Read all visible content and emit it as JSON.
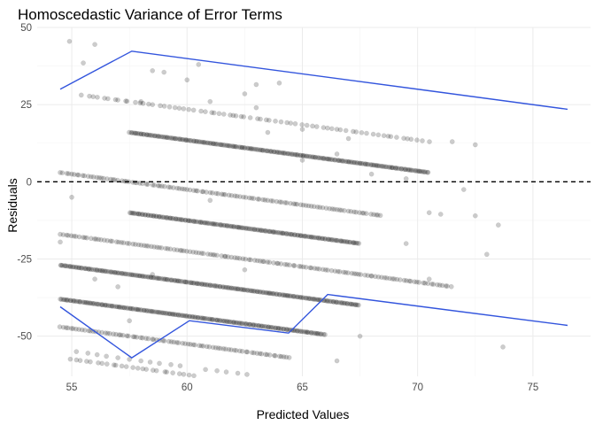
{
  "chart_data": {
    "type": "scatter",
    "title": "Homoscedastic Variance of Error Terms",
    "xlabel": "Predicted Values",
    "ylabel": "Residuals",
    "xlim": [
      53.5,
      77.5
    ],
    "ylim": [
      -63,
      50
    ],
    "x_ticks": [
      55,
      60,
      65,
      70,
      75
    ],
    "y_ticks": [
      -50,
      -25,
      0,
      25,
      50
    ],
    "x_tick_labels": [
      "55",
      "60",
      "65",
      "70",
      "75"
    ],
    "y_tick_labels": [
      "-50",
      "-25",
      "0",
      "25",
      "50"
    ],
    "grid": true,
    "reference_line": {
      "y": 0,
      "style": "dashed",
      "color": "#000000"
    },
    "point_color": "#000000",
    "point_opacity": 0.2,
    "line_color": "#3355dd",
    "bands": [
      {
        "offset": 83.5,
        "x_start": 55.5,
        "x_end": 70.5,
        "density": "sparse"
      },
      {
        "offset": 73.5,
        "x_start": 57.5,
        "x_end": 70.5,
        "density": "dense"
      },
      {
        "offset": 57.5,
        "x_start": 54.5,
        "x_end": 68.5,
        "density": "medium"
      },
      {
        "offset": 47.5,
        "x_start": 57.5,
        "x_end": 67.5,
        "density": "dense"
      },
      {
        "offset": 37.5,
        "x_start": 54.5,
        "x_end": 71.5,
        "density": "medium"
      },
      {
        "offset": 27.5,
        "x_start": 54.5,
        "x_end": 67.5,
        "density": "dense"
      },
      {
        "offset": 16.5,
        "x_start": 54.5,
        "x_end": 66.0,
        "density": "dense"
      },
      {
        "offset": 7.5,
        "x_start": 54.5,
        "x_end": 64.5,
        "density": "medium"
      },
      {
        "offset": -2.5,
        "x_start": 55.0,
        "x_end": 61.5,
        "density": "sparse"
      },
      {
        "offset": -13.5,
        "x_start": 55.0,
        "x_end": 64.5,
        "density": "sparse"
      },
      {
        "offset": -23.5,
        "x_start": 55.0,
        "x_end": 67.0,
        "density": "sparse"
      }
    ],
    "scatter_extra": [
      {
        "x": 54.9,
        "y": 45.5
      },
      {
        "x": 55.5,
        "y": 38.5
      },
      {
        "x": 56.0,
        "y": 44.5
      },
      {
        "x": 58.5,
        "y": 36.0
      },
      {
        "x": 59.0,
        "y": 35.5
      },
      {
        "x": 60.0,
        "y": 33.0
      },
      {
        "x": 62.5,
        "y": 28.5
      },
      {
        "x": 63.0,
        "y": 31.5
      },
      {
        "x": 64.0,
        "y": 32.0
      },
      {
        "x": 62.0,
        "y": 21.5
      },
      {
        "x": 63.5,
        "y": 16.0
      },
      {
        "x": 65.0,
        "y": 7.0
      },
      {
        "x": 66.5,
        "y": 9.0
      },
      {
        "x": 68.0,
        "y": 2.5
      },
      {
        "x": 69.5,
        "y": 1.0
      },
      {
        "x": 71.5,
        "y": 13.0
      },
      {
        "x": 72.5,
        "y": 12.0
      },
      {
        "x": 70.5,
        "y": -10.0
      },
      {
        "x": 71.0,
        "y": -10.5
      },
      {
        "x": 72.0,
        "y": -2.5
      },
      {
        "x": 72.5,
        "y": -11.0
      },
      {
        "x": 73.5,
        "y": -14.0
      },
      {
        "x": 69.5,
        "y": -20.0
      },
      {
        "x": 73.0,
        "y": -23.5
      },
      {
        "x": 56.0,
        "y": -31.5
      },
      {
        "x": 57.0,
        "y": -34.0
      },
      {
        "x": 58.5,
        "y": -30.0
      },
      {
        "x": 61.0,
        "y": -6.0
      },
      {
        "x": 62.5,
        "y": -28.5
      },
      {
        "x": 66.5,
        "y": -58.0
      },
      {
        "x": 67.5,
        "y": -50.0
      },
      {
        "x": 70.5,
        "y": -31.5
      },
      {
        "x": 73.7,
        "y": -53.5
      },
      {
        "x": 54.5,
        "y": -19.5
      },
      {
        "x": 55.0,
        "y": -5.0
      },
      {
        "x": 57.5,
        "y": -45.0
      },
      {
        "x": 58.0,
        "y": 26.0
      },
      {
        "x": 67.0,
        "y": 14.0
      },
      {
        "x": 65.0,
        "y": 17.0
      },
      {
        "x": 60.5,
        "y": 38.0
      },
      {
        "x": 61.0,
        "y": 26.0
      },
      {
        "x": 63.0,
        "y": 24.0
      }
    ],
    "lower_points": [
      {
        "x": 55.2,
        "y": -55
      },
      {
        "x": 55.7,
        "y": -55.5
      },
      {
        "x": 56.1,
        "y": -56
      },
      {
        "x": 56.5,
        "y": -56.5
      },
      {
        "x": 57.0,
        "y": -57
      },
      {
        "x": 57.5,
        "y": -57.5
      },
      {
        "x": 58.0,
        "y": -58
      },
      {
        "x": 58.4,
        "y": -58.4
      },
      {
        "x": 58.8,
        "y": -58.8
      },
      {
        "x": 59.3,
        "y": -59.2
      },
      {
        "x": 59.7,
        "y": -59.6
      },
      {
        "x": 60.8,
        "y": -60.8
      },
      {
        "x": 61.3,
        "y": -61.2
      },
      {
        "x": 61.7,
        "y": -61.6
      },
      {
        "x": 62.2,
        "y": -62
      },
      {
        "x": 62.6,
        "y": -62.4
      },
      {
        "x": 63.8,
        "y": -63.7
      },
      {
        "x": 64.2,
        "y": -64.1
      },
      {
        "x": 64.7,
        "y": -64.6
      },
      {
        "x": 65.1,
        "y": -65
      },
      {
        "x": 66.3,
        "y": -66.2
      },
      {
        "x": 66.7,
        "y": -66.5
      },
      {
        "x": 67.2,
        "y": -67
      }
    ],
    "trend_upper": [
      {
        "x": 54.5,
        "y": 30.0
      },
      {
        "x": 57.6,
        "y": 42.3
      },
      {
        "x": 70.5,
        "y": 29.5
      },
      {
        "x": 76.5,
        "y": 23.5
      }
    ],
    "trend_lower": [
      {
        "x": 54.5,
        "y": -40.5
      },
      {
        "x": 57.6,
        "y": -57.0
      },
      {
        "x": 60.1,
        "y": -45.0
      },
      {
        "x": 64.4,
        "y": -49.0
      },
      {
        "x": 66.1,
        "y": -36.5
      },
      {
        "x": 76.5,
        "y": -46.5
      }
    ]
  }
}
